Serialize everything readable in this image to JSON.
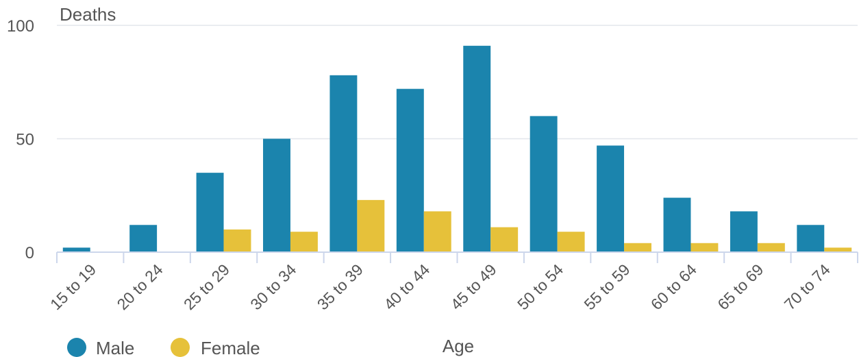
{
  "chart_data": {
    "type": "bar",
    "ylabel": "Deaths",
    "xlabel": "Age",
    "ylim": [
      0,
      100
    ],
    "yticks": [
      0,
      50,
      100
    ],
    "categories": [
      "15 to 19",
      "20 to 24",
      "25 to 29",
      "30 to 34",
      "35 to 39",
      "40 to 44",
      "45 to 49",
      "50 to 54",
      "55 to 59",
      "60 to 64",
      "65 to 69",
      "70 to 74"
    ],
    "series": [
      {
        "name": "Male",
        "color": "#1b84ad",
        "values": [
          2,
          12,
          35,
          50,
          78,
          72,
          91,
          60,
          47,
          24,
          18,
          12
        ]
      },
      {
        "name": "Female",
        "color": "#e6c13a",
        "values": [
          0,
          0,
          10,
          9,
          23,
          18,
          11,
          9,
          4,
          4,
          4,
          2
        ]
      }
    ],
    "grid": true,
    "legend": "bottom-left"
  }
}
